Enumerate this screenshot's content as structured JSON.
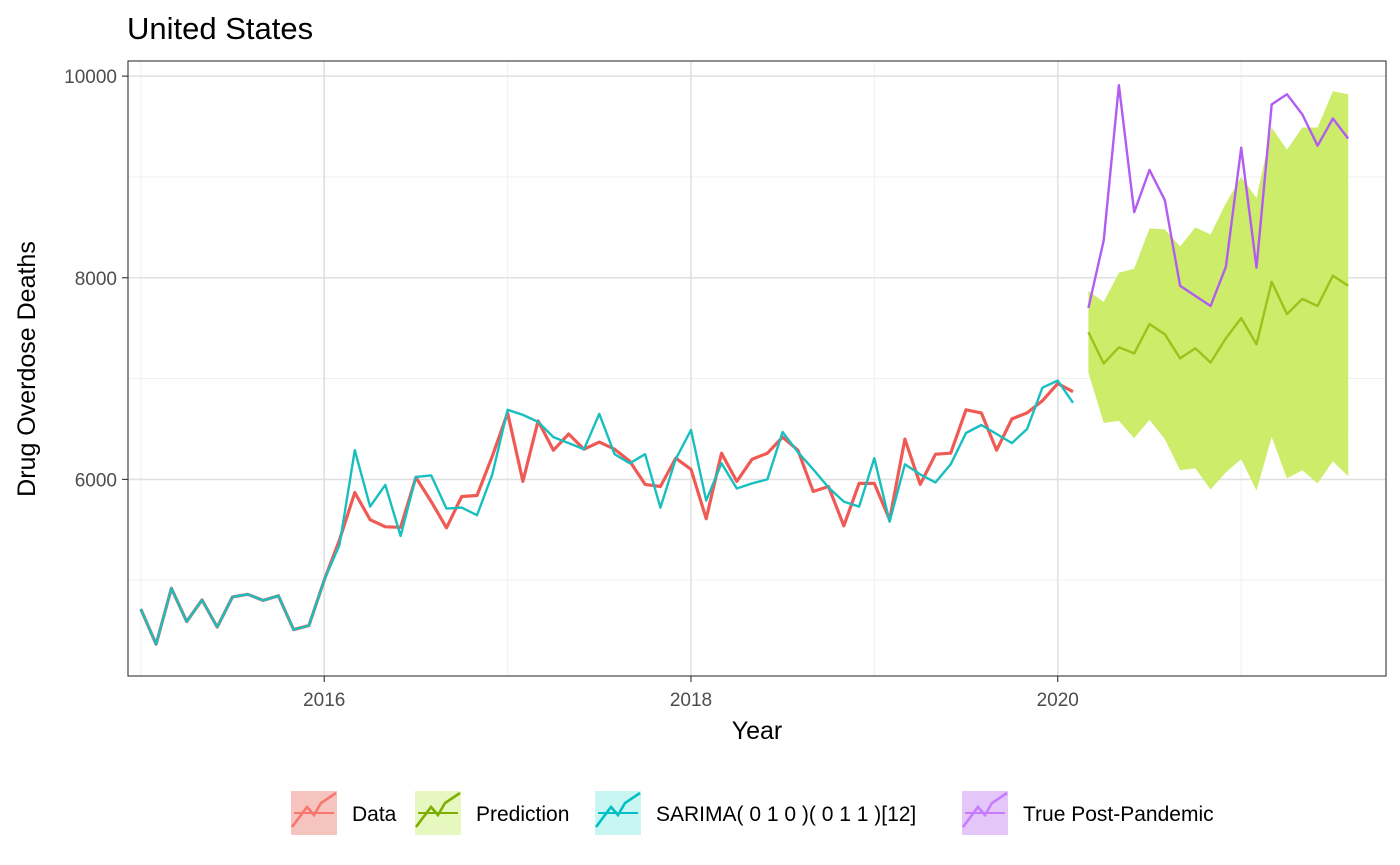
{
  "chart_data": {
    "type": "line",
    "title": "United States",
    "xlabel": "Year",
    "ylabel": "Drug Overdose Deaths",
    "xlim": [
      2014.93,
      2021.79
    ],
    "ylim": [
      4050,
      10150
    ],
    "x_ticks": [
      2016,
      2018,
      2020
    ],
    "x_tick_labels": [
      "2016",
      "2018",
      "2020"
    ],
    "y_ticks": [
      6000,
      8000,
      10000
    ],
    "y_tick_labels": [
      "6000",
      "8000",
      "10000"
    ],
    "grid": true,
    "legend_position": "bottom",
    "legend": [
      {
        "label": "Data",
        "color": "#F8766D",
        "fill": "#F5C4BE"
      },
      {
        "label": "Prediction",
        "color": "#7CAE00",
        "fill": "#E6F8BF"
      },
      {
        "label": "SARIMA( 0 1 0 )( 0 1 1 )[12]",
        "color": "#00BFC4",
        "fill": "#C7F6F3"
      },
      {
        "label": "True Post-Pandemic",
        "color": "#C77CFF",
        "fill": "#E4C6F8"
      }
    ],
    "series": [
      {
        "name": "Data",
        "color": "#F05A55",
        "start": 2015.0,
        "step": 0.08333,
        "values": [
          4715,
          4365,
          4920,
          4590,
          4805,
          4535,
          4835,
          4860,
          4800,
          4845,
          4510,
          4550,
          5000,
          5400,
          5870,
          5600,
          5530,
          5525,
          6020,
          5780,
          5520,
          5830,
          5840,
          6230,
          6660,
          5980,
          6580,
          6290,
          6450,
          6300,
          6370,
          6300,
          6180,
          5950,
          5930,
          6210,
          6100,
          5610,
          6260,
          5980,
          6200,
          6260,
          6420,
          6290,
          5880,
          5930,
          5540,
          5960,
          5960,
          5600,
          6400,
          5950,
          6250,
          6260,
          6690,
          6660,
          6290,
          6600,
          6660,
          6780,
          6950,
          6870
        ]
      },
      {
        "name": "SARIMA( 0 1 0 )( 0 1 1 )[12]",
        "color": "#19BFBF",
        "start": 2015.0,
        "step": 0.08333,
        "values": [
          4715,
          4365,
          4920,
          4590,
          4805,
          4535,
          4835,
          4860,
          4800,
          4845,
          4510,
          4550,
          5000,
          5350,
          6290,
          5730,
          5945,
          5440,
          6025,
          6040,
          5710,
          5720,
          5645,
          6050,
          6690,
          6640,
          6570,
          6420,
          6360,
          6300,
          6650,
          6250,
          6160,
          6250,
          5720,
          6200,
          6490,
          5790,
          6160,
          5910,
          5960,
          6000,
          6470,
          6270,
          6100,
          5920,
          5780,
          5730,
          6210,
          5580,
          6150,
          6050,
          5970,
          6150,
          6460,
          6540,
          6450,
          6360,
          6500,
          6910,
          6980,
          6760
        ]
      },
      {
        "name": "Prediction",
        "color": "#9BC31C",
        "start": 2020.167,
        "step": 0.08333,
        "values": [
          7460,
          7150,
          7310,
          7250,
          7540,
          7440,
          7200,
          7300,
          7160,
          7400,
          7600,
          7340,
          7960,
          7640,
          7790,
          7720,
          8020,
          7920
        ],
        "lower": [
          7060,
          6560,
          6580,
          6410,
          6590,
          6400,
          6090,
          6110,
          5900,
          6070,
          6200,
          5890,
          6420,
          6010,
          6090,
          5960,
          6180,
          6030
        ],
        "upper": [
          7870,
          7760,
          8050,
          8090,
          8490,
          8480,
          8310,
          8500,
          8430,
          8740,
          9000,
          8790,
          9490,
          9270,
          9490,
          9490,
          9850,
          9820
        ]
      },
      {
        "name": "True Post-Pandemic",
        "color": "#B25CF2",
        "start": 2020.167,
        "step": 0.08333,
        "values": [
          7700,
          8370,
          9910,
          8650,
          9070,
          8770,
          7920,
          7820,
          7720,
          8110,
          9290,
          8100,
          9720,
          9820,
          9620,
          9310,
          9580,
          9380
        ]
      }
    ]
  }
}
